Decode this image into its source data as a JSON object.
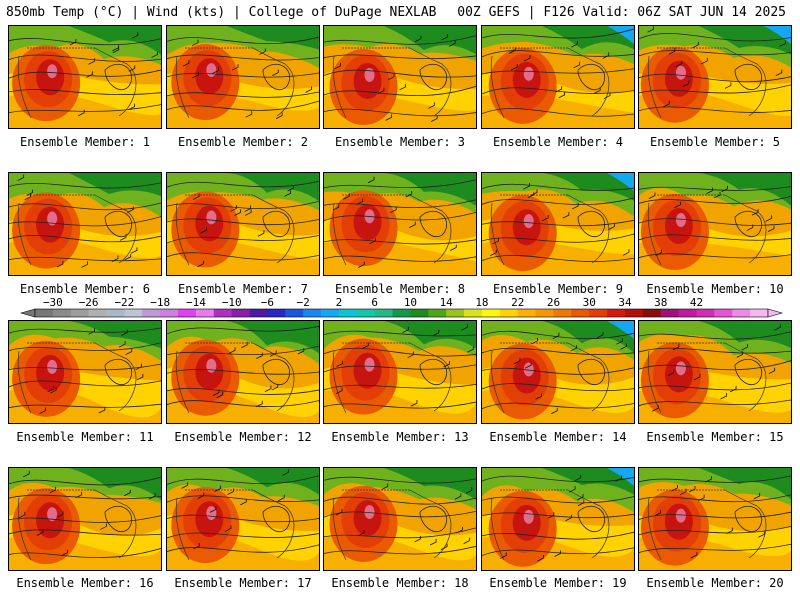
{
  "header": {
    "left": "850mb Temp (°C) | Wind (kts) | College of DuPage NEXLAB",
    "right": "00Z GEFS | F126 Valid: 06Z SAT JUN 14 2025"
  },
  "panels": [
    "Ensemble Member: 1",
    "Ensemble Member: 2",
    "Ensemble Member: 3",
    "Ensemble Member: 4",
    "Ensemble Member: 5",
    "Ensemble Member: 6",
    "Ensemble Member: 7",
    "Ensemble Member: 8",
    "Ensemble Member: 9",
    "Ensemble Member: 10",
    "Ensemble Member: 11",
    "Ensemble Member: 12",
    "Ensemble Member: 13",
    "Ensemble Member: 14",
    "Ensemble Member: 15",
    "Ensemble Member: 16",
    "Ensemble Member: 17",
    "Ensemble Member: 18",
    "Ensemble Member: 19",
    "Ensemble Member: 20"
  ],
  "colorbar": {
    "ticks": [
      "-30",
      "-26",
      "-22",
      "-18",
      "-14",
      "-10",
      "-6",
      "-2",
      "2",
      "6",
      "10",
      "14",
      "18",
      "22",
      "26",
      "30",
      "34",
      "38",
      "42"
    ],
    "colors": [
      "#777777",
      "#8a8a8a",
      "#9d9d9d",
      "#b0b0b0",
      "#a9b7c7",
      "#bfc5d4",
      "#bb9ad6",
      "#cf7fe0",
      "#e040f0",
      "#ec79ef",
      "#b12ec2",
      "#8a1fa9",
      "#4f18a8",
      "#2727c8",
      "#1b55e0",
      "#1a86f0",
      "#14a8f2",
      "#0ac4d8",
      "#12c8a8",
      "#23b886",
      "#119a4b",
      "#1e8b1e",
      "#50a61b",
      "#9ac31d",
      "#d8e31b",
      "#fff70a",
      "#ffd400",
      "#ffb000",
      "#f89600",
      "#f17800",
      "#ea5a00",
      "#e23e06",
      "#d31a10",
      "#b50e0e",
      "#8e0b0b",
      "#a0127a",
      "#c2179e",
      "#d52cb6",
      "#e653d3",
      "#f088e6",
      "#f6b7f0"
    ]
  }
}
